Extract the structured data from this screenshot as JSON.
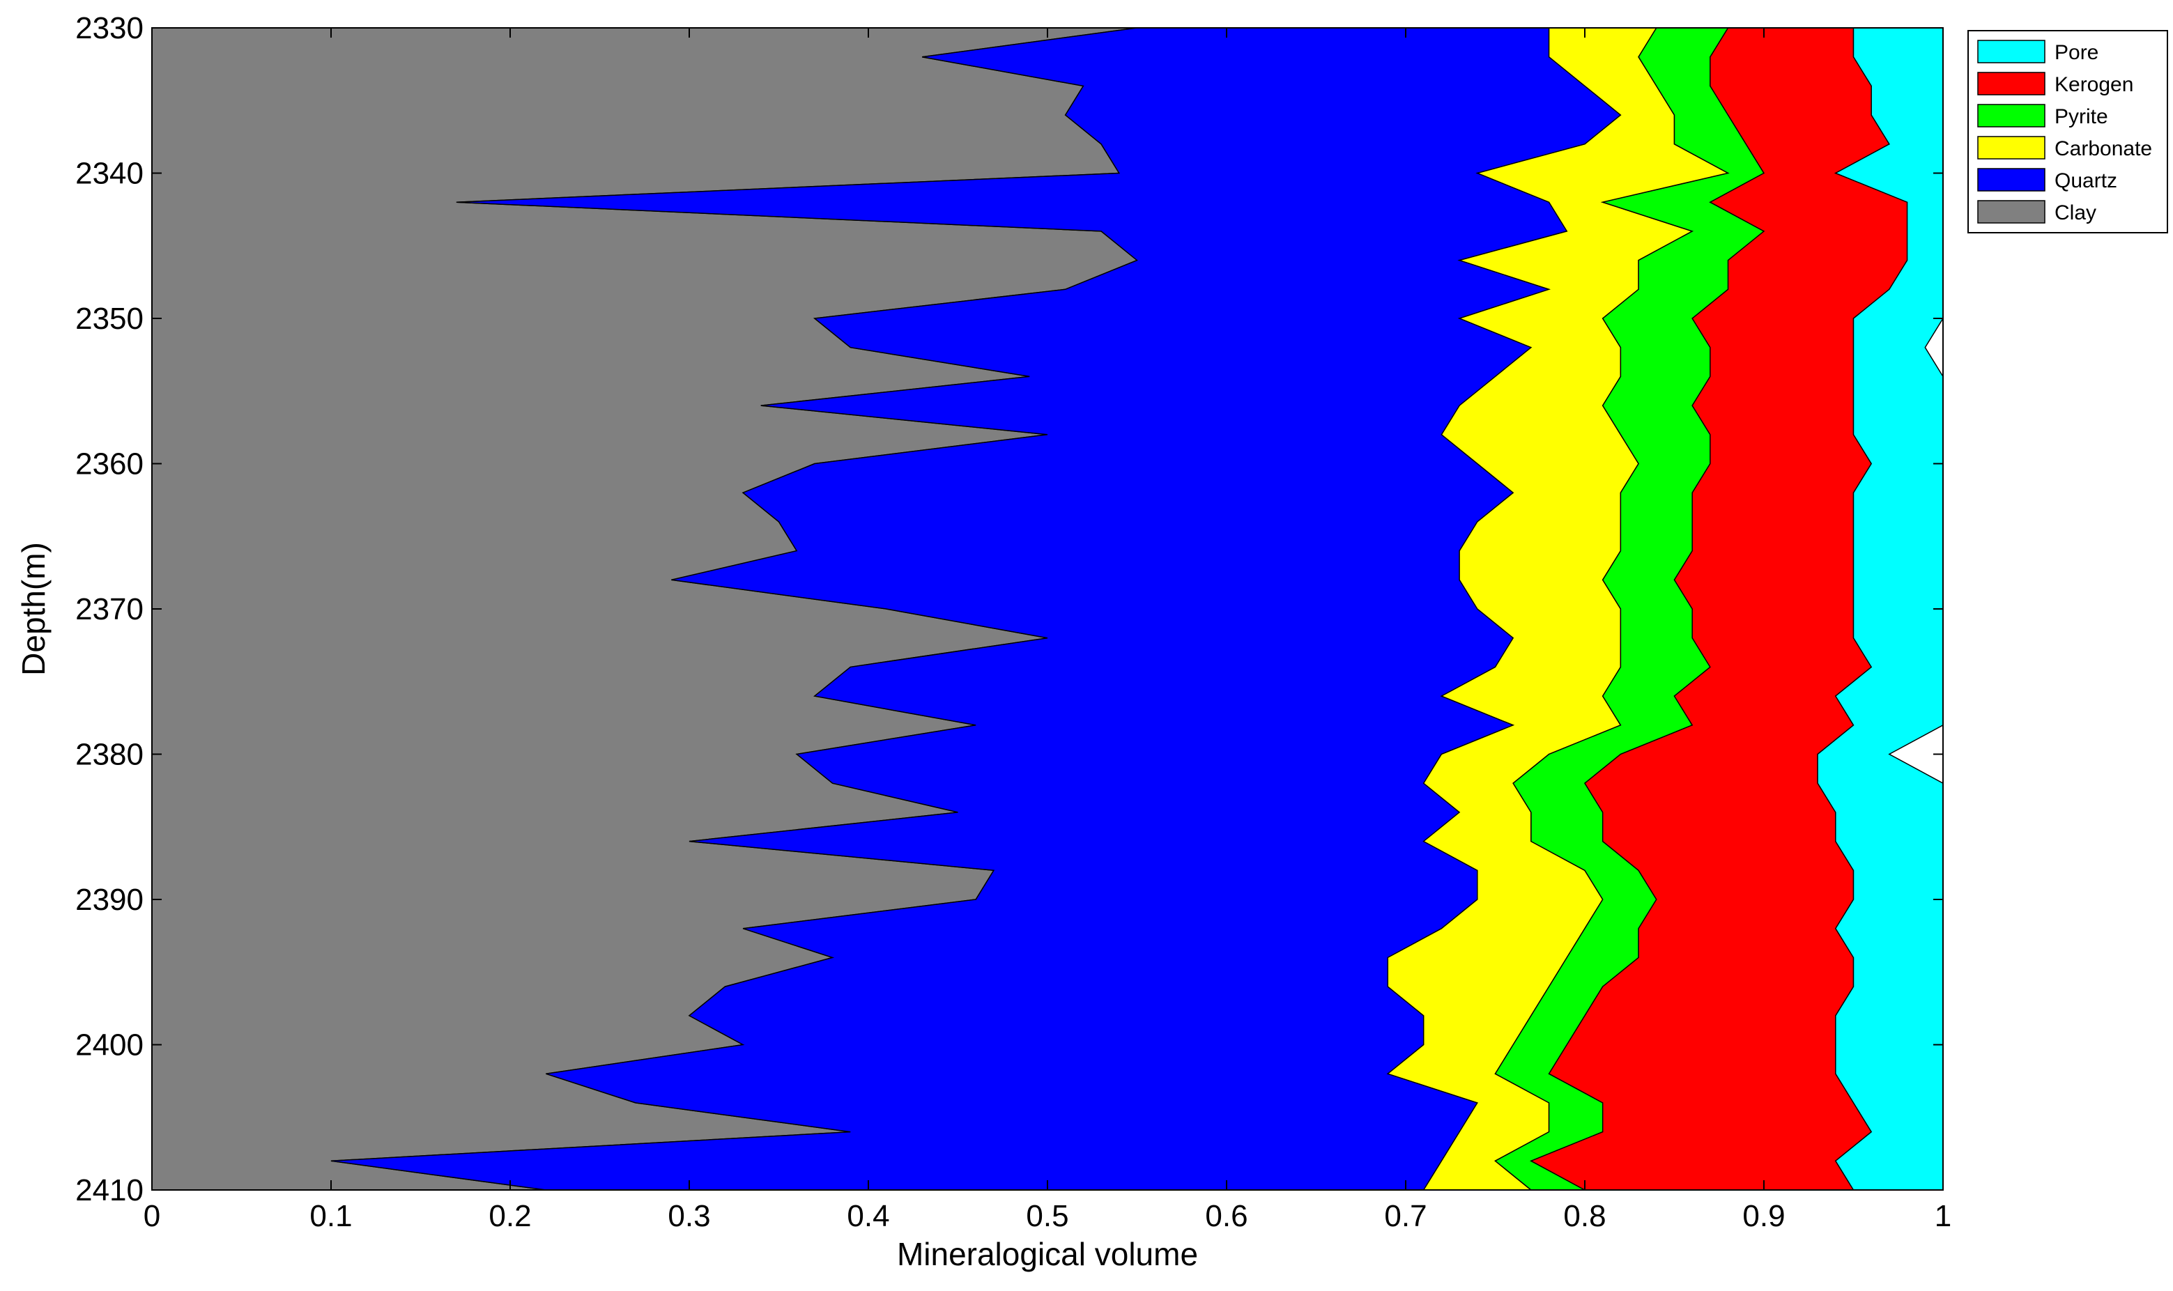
{
  "chart_data": {
    "type": "area",
    "orientation": "horizontal-stacked",
    "xlabel": "Mineralogical volume",
    "ylabel": "Depth(m)",
    "xlim": [
      0,
      1
    ],
    "ylim": [
      2330,
      2410
    ],
    "y_reversed": true,
    "grid": false,
    "legend_position": "top-right (outside plot)",
    "x_ticks": [
      "0",
      "0.1",
      "0.2",
      "0.3",
      "0.4",
      "0.5",
      "0.6",
      "0.7",
      "0.8",
      "0.9",
      "1"
    ],
    "y_ticks": [
      "2330",
      "2340",
      "2350",
      "2360",
      "2370",
      "2380",
      "2390",
      "2400",
      "2410"
    ],
    "depth": [
      2330,
      2332,
      2334,
      2336,
      2338,
      2340,
      2342,
      2344,
      2346,
      2348,
      2350,
      2352,
      2354,
      2356,
      2358,
      2360,
      2362,
      2364,
      2366,
      2368,
      2370,
      2372,
      2374,
      2376,
      2378,
      2380,
      2382,
      2384,
      2386,
      2388,
      2390,
      2392,
      2394,
      2396,
      2398,
      2400,
      2402,
      2404,
      2406,
      2408,
      2410
    ],
    "series": [
      {
        "name": "Clay",
        "color": "#808080",
        "values": [
          0.55,
          0.43,
          0.52,
          0.51,
          0.53,
          0.54,
          0.17,
          0.53,
          0.55,
          0.51,
          0.37,
          0.39,
          0.49,
          0.34,
          0.5,
          0.37,
          0.33,
          0.35,
          0.36,
          0.29,
          0.41,
          0.5,
          0.39,
          0.37,
          0.46,
          0.36,
          0.38,
          0.45,
          0.3,
          0.47,
          0.46,
          0.33,
          0.38,
          0.32,
          0.3,
          0.33,
          0.22,
          0.27,
          0.39,
          0.1,
          0.22
        ]
      },
      {
        "name": "Quartz",
        "color": "#0000ff",
        "values": [
          0.23,
          0.35,
          0.28,
          0.31,
          0.27,
          0.2,
          0.61,
          0.26,
          0.18,
          0.27,
          0.36,
          0.38,
          0.26,
          0.39,
          0.22,
          0.37,
          0.43,
          0.39,
          0.37,
          0.44,
          0.33,
          0.26,
          0.36,
          0.35,
          0.3,
          0.36,
          0.33,
          0.28,
          0.41,
          0.27,
          0.28,
          0.39,
          0.31,
          0.37,
          0.41,
          0.38,
          0.47,
          0.47,
          0.34,
          0.62,
          0.49
        ]
      },
      {
        "name": "Carbonate",
        "color": "#ffff00",
        "values": [
          0.06,
          0.05,
          0.04,
          0.03,
          0.05,
          0.14,
          0.03,
          0.07,
          0.1,
          0.05,
          0.08,
          0.05,
          0.07,
          0.08,
          0.1,
          0.09,
          0.06,
          0.08,
          0.09,
          0.08,
          0.08,
          0.06,
          0.07,
          0.09,
          0.06,
          0.06,
          0.05,
          0.04,
          0.06,
          0.06,
          0.07,
          0.08,
          0.1,
          0.09,
          0.06,
          0.05,
          0.06,
          0.04,
          0.05,
          0.03,
          0.06
        ]
      },
      {
        "name": "Pyrite",
        "color": "#00ff00",
        "values": [
          0.04,
          0.04,
          0.03,
          0.03,
          0.04,
          0.02,
          0.06,
          0.04,
          0.05,
          0.05,
          0.05,
          0.05,
          0.05,
          0.05,
          0.05,
          0.04,
          0.04,
          0.04,
          0.04,
          0.04,
          0.04,
          0.04,
          0.05,
          0.04,
          0.04,
          0.04,
          0.04,
          0.04,
          0.04,
          0.03,
          0.03,
          0.03,
          0.04,
          0.03,
          0.03,
          0.03,
          0.03,
          0.03,
          0.03,
          0.02,
          0.03
        ]
      },
      {
        "name": "Kerogen",
        "color": "#ff0000",
        "values": [
          0.07,
          0.08,
          0.09,
          0.08,
          0.08,
          0.04,
          0.11,
          0.08,
          0.1,
          0.09,
          0.09,
          0.08,
          0.08,
          0.09,
          0.08,
          0.09,
          0.09,
          0.09,
          0.09,
          0.1,
          0.09,
          0.09,
          0.09,
          0.09,
          0.09,
          0.11,
          0.13,
          0.13,
          0.13,
          0.12,
          0.11,
          0.11,
          0.12,
          0.14,
          0.14,
          0.15,
          0.16,
          0.14,
          0.15,
          0.17,
          0.15
        ]
      },
      {
        "name": "Pore",
        "color": "#00ffff",
        "values": [
          0.05,
          0.05,
          0.04,
          0.04,
          0.03,
          0.06,
          0.02,
          0.02,
          0.02,
          0.03,
          0.05,
          0.04,
          0.05,
          0.05,
          0.05,
          0.04,
          0.05,
          0.05,
          0.05,
          0.05,
          0.05,
          0.05,
          0.04,
          0.06,
          0.05,
          0.04,
          0.07,
          0.06,
          0.06,
          0.05,
          0.05,
          0.06,
          0.05,
          0.05,
          0.06,
          0.06,
          0.06,
          0.05,
          0.04,
          0.06,
          0.05
        ]
      }
    ],
    "legend_entries": [
      "Pore",
      "Kerogen",
      "Pyrite",
      "Carbonate",
      "Quartz",
      "Clay"
    ]
  }
}
